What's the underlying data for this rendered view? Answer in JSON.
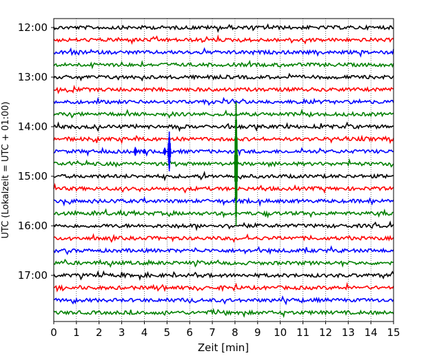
{
  "chart_data": {
    "type": "line",
    "title": "",
    "xlabel": "Zeit  [min]",
    "ylabel": "UTC (Lokalzeit = UTC + 01:00)",
    "xlim": [
      0,
      15
    ],
    "x_ticks": [
      0,
      1,
      2,
      3,
      4,
      5,
      6,
      7,
      8,
      9,
      10,
      11,
      12,
      13,
      14,
      15
    ],
    "x_tick_labels": [
      "0",
      "1",
      "2",
      "3",
      "4",
      "5",
      "6",
      "7",
      "8",
      "9",
      "10",
      "11",
      "12",
      "13",
      "14",
      "15"
    ],
    "y_tick_labels": [
      "12:00",
      "13:00",
      "14:00",
      "15:00",
      "16:00",
      "17:00"
    ],
    "y_tick_rows": [
      0,
      4,
      8,
      12,
      16,
      20
    ],
    "grid": "vertical-dotted",
    "row_interval_minutes": 15,
    "color_cycle": [
      "#000000",
      "#ff0000",
      "#0000ff",
      "#008000"
    ],
    "series": [
      {
        "start": "12:00",
        "color": "#000000"
      },
      {
        "start": "12:15",
        "color": "#ff0000"
      },
      {
        "start": "12:30",
        "color": "#0000ff"
      },
      {
        "start": "12:45",
        "color": "#008000"
      },
      {
        "start": "13:00",
        "color": "#000000"
      },
      {
        "start": "13:15",
        "color": "#ff0000"
      },
      {
        "start": "13:30",
        "color": "#0000ff"
      },
      {
        "start": "13:45",
        "color": "#008000"
      },
      {
        "start": "14:00",
        "color": "#000000"
      },
      {
        "start": "14:15",
        "color": "#ff0000"
      },
      {
        "start": "14:30",
        "color": "#0000ff"
      },
      {
        "start": "14:45",
        "color": "#008000"
      },
      {
        "start": "15:00",
        "color": "#000000"
      },
      {
        "start": "15:15",
        "color": "#ff0000"
      },
      {
        "start": "15:30",
        "color": "#0000ff"
      },
      {
        "start": "15:45",
        "color": "#008000"
      },
      {
        "start": "16:00",
        "color": "#000000"
      },
      {
        "start": "16:15",
        "color": "#ff0000"
      },
      {
        "start": "16:30",
        "color": "#0000ff"
      },
      {
        "start": "16:45",
        "color": "#008000"
      },
      {
        "start": "17:00",
        "color": "#000000"
      },
      {
        "start": "17:15",
        "color": "#ff0000"
      },
      {
        "start": "17:30",
        "color": "#0000ff"
      },
      {
        "start": "17:45",
        "color": "#008000"
      }
    ],
    "events": [
      {
        "row": 10,
        "minute": 3.6,
        "extent_rows": 0.35
      },
      {
        "row": 10,
        "minute": 4.0,
        "extent_rows": 0.2
      },
      {
        "row": 10,
        "minute": 4.9,
        "extent_rows": 0.3
      },
      {
        "row": 10,
        "minute": 5.1,
        "extent_rows": 1.6
      },
      {
        "row": 11,
        "minute": 8.05,
        "extent_rows": 5.0
      }
    ]
  }
}
